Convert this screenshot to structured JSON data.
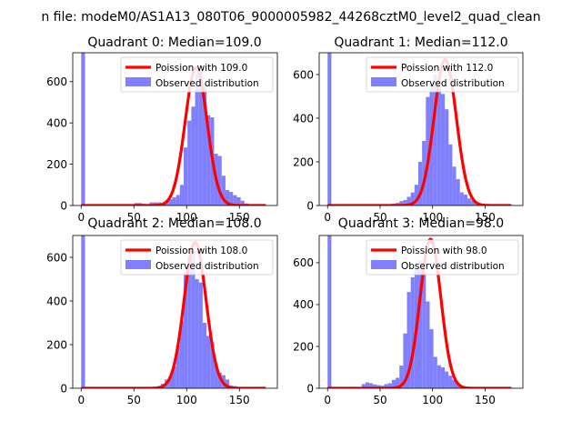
{
  "figure": {
    "suptitle": "n file: modeM0/AS1A13_080T06_9000005982_44268cztM0_level2_quad_clean"
  },
  "colors": {
    "poisson": "#ff0000",
    "hist": "#8080ff",
    "axis": "#000000"
  },
  "chart_data": [
    {
      "type": "bar",
      "title": "Quadrant 0: Median=109.0",
      "xlim": [
        -8,
        186
      ],
      "ylim": [
        0,
        740
      ],
      "xticks": [
        0,
        50,
        100,
        150
      ],
      "yticks": [
        0,
        200,
        400,
        600
      ],
      "legend_placement": "upper-right",
      "legend": [
        "Poission with 109.0",
        "Observed distribution"
      ],
      "median": 109.0,
      "poisson_peak": 669,
      "bin_start": 0,
      "bin_width": 3.6,
      "hist_values": [
        740,
        0,
        0,
        0,
        0,
        0,
        0,
        0,
        0,
        0,
        0,
        0,
        0,
        0,
        12,
        12,
        8,
        4,
        15,
        15,
        15,
        12,
        23,
        30,
        40,
        51,
        100,
        281,
        411,
        479,
        639,
        660,
        590,
        437,
        427,
        251,
        240,
        144,
        75,
        66,
        50,
        40,
        23,
        10,
        5,
        2,
        1,
        1,
        1,
        0
      ]
    },
    {
      "type": "bar",
      "title": "Quadrant 1: Median=112.0",
      "xlim": [
        -8,
        186
      ],
      "ylim": [
        0,
        700
      ],
      "xticks": [
        0,
        50,
        100,
        150
      ],
      "yticks": [
        0,
        200,
        400,
        600
      ],
      "legend_placement": "upper-right",
      "legend": [
        "Poission with 112.0",
        "Observed distribution"
      ],
      "median": 112.0,
      "poisson_peak": 669,
      "bin_start": 0,
      "bin_width": 3.6,
      "hist_values": [
        700,
        0,
        0,
        0,
        0,
        0,
        0,
        0,
        0,
        0,
        0,
        0,
        0,
        0,
        0,
        0,
        4,
        8,
        12,
        20,
        25,
        40,
        60,
        95,
        200,
        296,
        497,
        560,
        600,
        545,
        511,
        441,
        280,
        178,
        121,
        60,
        50,
        32,
        22,
        12,
        5,
        4,
        2,
        1,
        0,
        0,
        0,
        0,
        0,
        0
      ]
    },
    {
      "type": "bar",
      "title": "Quadrant 2: Median=108.0",
      "xlim": [
        -8,
        186
      ],
      "ylim": [
        0,
        700
      ],
      "xticks": [
        0,
        50,
        100,
        150
      ],
      "yticks": [
        0,
        200,
        400,
        600
      ],
      "legend_placement": "upper-right",
      "legend": [
        "Poission with 108.0",
        "Observed distribution"
      ],
      "median": 108.0,
      "poisson_peak": 669,
      "bin_start": 0,
      "bin_width": 3.6,
      "hist_values": [
        700,
        0,
        0,
        0,
        0,
        0,
        0,
        0,
        0,
        0,
        0,
        0,
        0,
        0,
        0,
        0,
        0,
        2,
        4,
        6,
        10,
        21,
        40,
        56,
        100,
        196,
        307,
        533,
        605,
        626,
        500,
        485,
        300,
        240,
        210,
        112,
        72,
        60,
        40,
        12,
        10,
        5,
        2,
        1,
        0,
        0,
        0,
        0,
        0,
        0
      ]
    },
    {
      "type": "bar",
      "title": "Quadrant 3: Median=98.0",
      "xlim": [
        -8,
        186
      ],
      "ylim": [
        0,
        730
      ],
      "xticks": [
        0,
        50,
        100,
        150
      ],
      "yticks": [
        0,
        200,
        400,
        600
      ],
      "legend_placement": "upper-right",
      "legend": [
        "Poission with 98.0",
        "Observed distribution"
      ],
      "median": 98.0,
      "poisson_peak": 713,
      "bin_start": 0,
      "bin_width": 3.6,
      "hist_values": [
        730,
        0,
        0,
        0,
        0,
        0,
        0,
        0,
        0,
        20,
        28,
        24,
        18,
        15,
        12,
        20,
        24,
        40,
        50,
        108,
        262,
        460,
        530,
        575,
        610,
        550,
        415,
        282,
        150,
        110,
        100,
        80,
        60,
        40,
        20,
        10,
        5,
        2,
        1,
        0,
        0,
        0,
        0,
        0,
        0,
        0,
        0,
        0,
        0,
        0
      ]
    }
  ]
}
